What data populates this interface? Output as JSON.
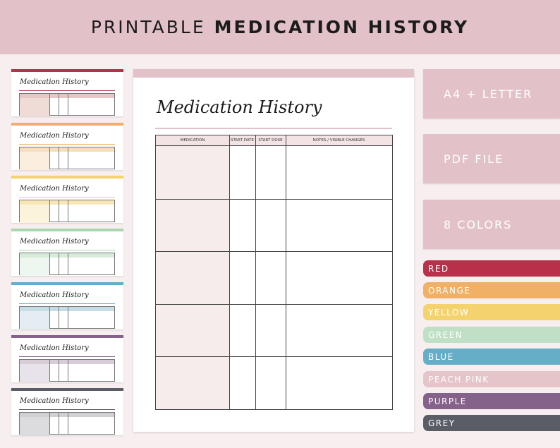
{
  "banner": {
    "light": "PRINTABLE",
    "bold": "MEDICATION HISTORY"
  },
  "sheet": {
    "title": "Medication History",
    "columns": [
      "MEDICATION",
      "START DATE",
      "START DOSE",
      "NOTES / VISIBLE CHANGES"
    ],
    "rows": 5,
    "accent": "#e2c2c8"
  },
  "features": [
    "A4 + LETTER",
    "PDF FILE",
    "8 COLORS"
  ],
  "colors": [
    {
      "label": "RED",
      "hex": "#b8304a"
    },
    {
      "label": "ORANGE",
      "hex": "#f0b066"
    },
    {
      "label": "YELLOW",
      "hex": "#f4d36e"
    },
    {
      "label": "GREEN",
      "hex": "#bfe0c4"
    },
    {
      "label": "BLUE",
      "hex": "#66adc8"
    },
    {
      "label": "PEACH PINK",
      "hex": "#e5c4ca"
    },
    {
      "label": "PURPLE",
      "hex": "#84628a"
    },
    {
      "label": "GREY",
      "hex": "#5a5c66"
    }
  ],
  "thumbnails": [
    {
      "title": "Medication History",
      "bar": "#b8304a",
      "head": "#e7c6c6",
      "cell": "#efdcd6"
    },
    {
      "title": "Medication History",
      "bar": "#f0b066",
      "head": "#f7dcbd",
      "cell": "#fbeedf"
    },
    {
      "title": "Medication History",
      "bar": "#f4d36e",
      "head": "#f8e7b5",
      "cell": "#fcf3dd"
    },
    {
      "title": "Medication History",
      "bar": "#a9d6b1",
      "head": "#d6ecd9",
      "cell": "#edf6ef"
    },
    {
      "title": "Medication History",
      "bar": "#66adc8",
      "head": "#c6dde6",
      "cell": "#e4eef2"
    },
    {
      "title": "Medication History",
      "bar": "#84628a",
      "head": "#d6cdd9",
      "cell": "#e8e3ea"
    },
    {
      "title": "Medication History",
      "bar": "#5a5c66",
      "head": "#cfd0d3",
      "cell": "#dcdcde"
    }
  ]
}
